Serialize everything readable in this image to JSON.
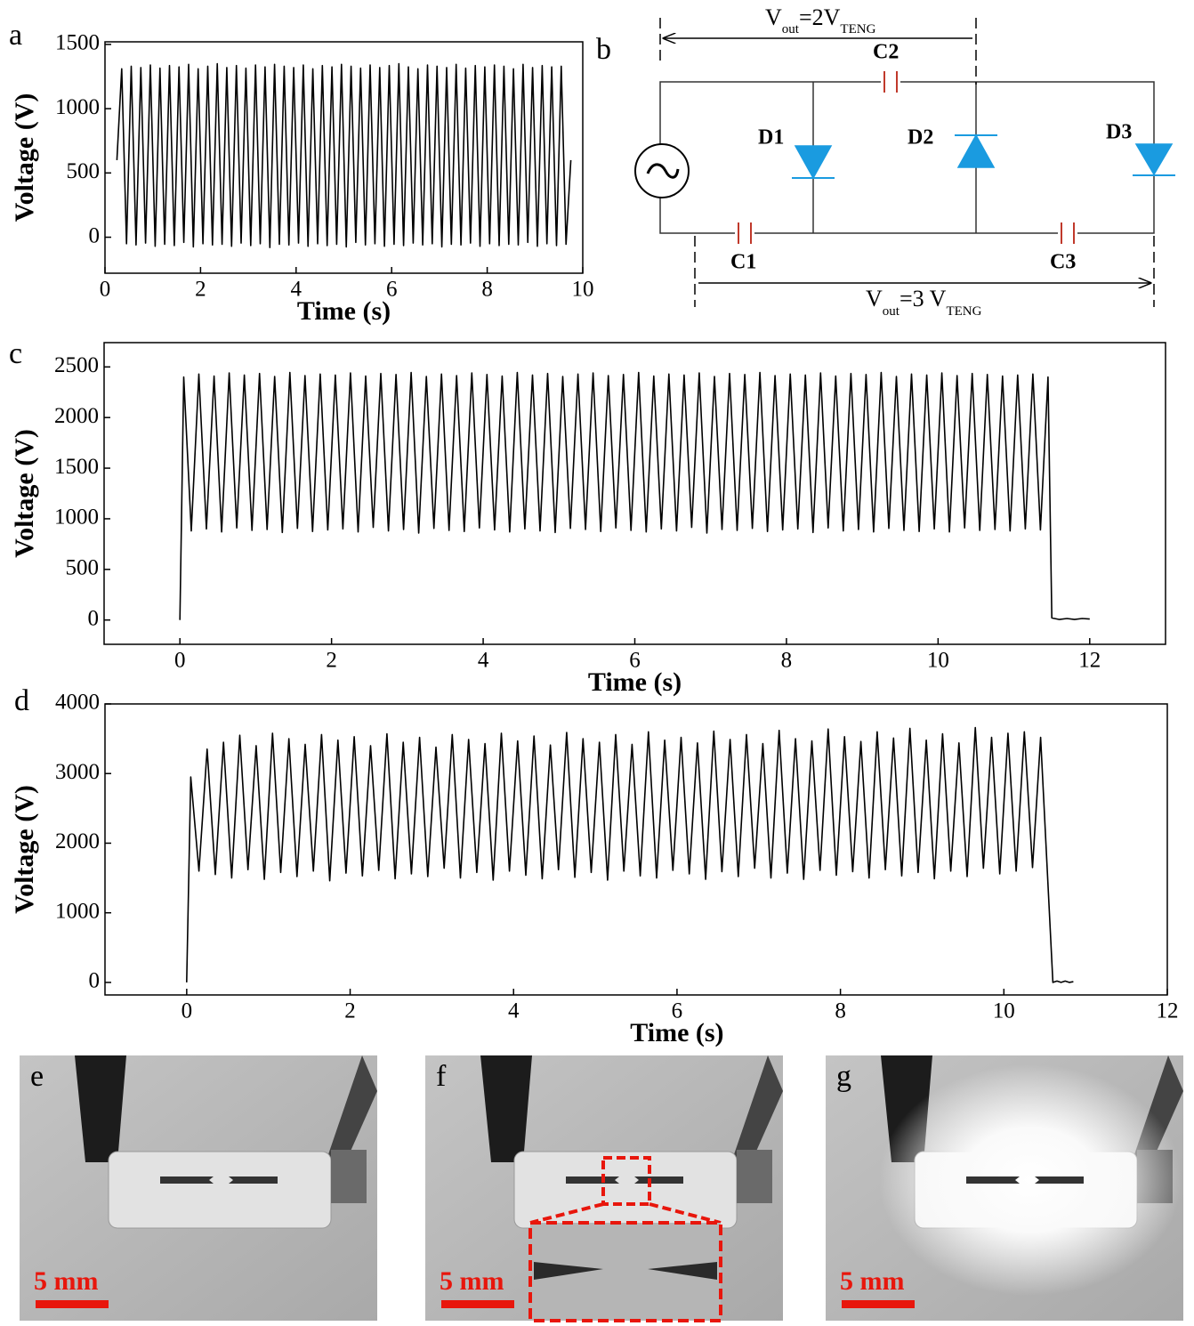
{
  "chart_data": [
    {
      "type": "line",
      "panel": "a",
      "xlabel": "Time (s)",
      "ylabel": "Voltage (V)",
      "color": "#000000",
      "xlim": [
        0,
        10
      ],
      "xticks": [
        0,
        2,
        4,
        6,
        8,
        10
      ],
      "ylim": [
        -280,
        1520
      ],
      "yticks": [
        0,
        500,
        1000,
        1500
      ],
      "x": [
        0.25,
        0.35,
        0.45,
        0.55,
        0.65,
        0.75,
        0.85,
        0.95,
        1.05,
        1.15,
        1.25,
        1.35,
        1.45,
        1.55,
        1.65,
        1.75,
        1.85,
        1.95,
        2.05,
        2.15,
        2.25,
        2.35,
        2.45,
        2.55,
        2.65,
        2.75,
        2.85,
        2.95,
        3.05,
        3.15,
        3.25,
        3.35,
        3.45,
        3.55,
        3.65,
        3.75,
        3.85,
        3.95,
        4.05,
        4.15,
        4.25,
        4.35,
        4.45,
        4.55,
        4.65,
        4.75,
        4.85,
        4.95,
        5.05,
        5.15,
        5.25,
        5.35,
        5.45,
        5.55,
        5.65,
        5.75,
        5.85,
        5.95,
        6.05,
        6.15,
        6.25,
        6.35,
        6.45,
        6.55,
        6.65,
        6.75,
        6.85,
        6.95,
        7.05,
        7.15,
        7.25,
        7.35,
        7.45,
        7.55,
        7.65,
        7.75,
        7.85,
        7.95,
        8.05,
        8.15,
        8.25,
        8.35,
        8.45,
        8.55,
        8.65,
        8.75,
        8.85,
        8.95,
        9.05,
        9.15,
        9.25,
        9.35,
        9.45,
        9.55,
        9.65,
        9.75
      ],
      "values": [
        600,
        1310,
        -50,
        1330,
        -60,
        1320,
        -45,
        1340,
        -70,
        1315,
        -55,
        1335,
        -65,
        1325,
        -40,
        1345,
        -75,
        1310,
        -50,
        1330,
        -60,
        1350,
        -55,
        1320,
        -70,
        1335,
        -45,
        1315,
        -65,
        1340,
        -50,
        1325,
        -80,
        1345,
        -55,
        1330,
        -60,
        1320,
        -45,
        1340,
        -70,
        1310,
        -50,
        1335,
        -65,
        1325,
        -55,
        1345,
        -75,
        1330,
        -40,
        1315,
        -60,
        1340,
        -50,
        1320,
        -70,
        1335,
        -55,
        1350,
        -65,
        1325,
        -45,
        1310,
        -60,
        1340,
        -50,
        1330,
        -75,
        1320,
        -55,
        1345,
        -60,
        1315,
        -45,
        1335,
        -70,
        1325,
        -50,
        1340,
        -65,
        1330,
        -55,
        1310,
        -60,
        1345,
        -40,
        1320,
        -70,
        1335,
        -50,
        1325,
        -65,
        1330,
        -55,
        600
      ]
    },
    {
      "type": "line",
      "panel": "c",
      "xlabel": "Time (s)",
      "ylabel": "Voltage (V)",
      "color": "#000000",
      "xlim": [
        -1,
        13
      ],
      "xticks": [
        0,
        2,
        4,
        6,
        8,
        10,
        12
      ],
      "ylim": [
        -240,
        2740
      ],
      "yticks": [
        0,
        500,
        1000,
        1500,
        2000,
        2500
      ],
      "x": [
        0,
        0.05,
        0.15,
        0.25,
        0.35,
        0.45,
        0.55,
        0.65,
        0.75,
        0.85,
        0.95,
        1.05,
        1.15,
        1.25,
        1.35,
        1.45,
        1.55,
        1.65,
        1.75,
        1.85,
        1.95,
        2.05,
        2.15,
        2.25,
        2.35,
        2.45,
        2.55,
        2.65,
        2.75,
        2.85,
        2.95,
        3.05,
        3.15,
        3.25,
        3.35,
        3.45,
        3.55,
        3.65,
        3.75,
        3.85,
        3.95,
        4.05,
        4.15,
        4.25,
        4.35,
        4.45,
        4.55,
        4.65,
        4.75,
        4.85,
        4.95,
        5.05,
        5.15,
        5.25,
        5.35,
        5.45,
        5.55,
        5.65,
        5.75,
        5.85,
        5.95,
        6.05,
        6.15,
        6.25,
        6.35,
        6.45,
        6.55,
        6.65,
        6.75,
        6.85,
        6.95,
        7.05,
        7.15,
        7.25,
        7.35,
        7.45,
        7.55,
        7.65,
        7.75,
        7.85,
        7.95,
        8.05,
        8.15,
        8.25,
        8.35,
        8.45,
        8.55,
        8.65,
        8.75,
        8.85,
        8.95,
        9.05,
        9.15,
        9.25,
        9.35,
        9.45,
        9.55,
        9.65,
        9.75,
        9.85,
        9.95,
        10.05,
        10.15,
        10.25,
        10.35,
        10.45,
        10.55,
        10.65,
        10.75,
        10.85,
        10.95,
        11.05,
        11.15,
        11.25,
        11.35,
        11.45,
        11.5,
        11.6,
        11.7,
        11.8,
        11.9,
        12
      ],
      "values": [
        0,
        2400,
        880,
        2430,
        900,
        2410,
        870,
        2440,
        910,
        2420,
        885,
        2435,
        895,
        2405,
        865,
        2445,
        905,
        2415,
        875,
        2430,
        890,
        2420,
        900,
        2440,
        870,
        2410,
        915,
        2435,
        880,
        2425,
        895,
        2445,
        860,
        2405,
        905,
        2430,
        885,
        2415,
        875,
        2440,
        910,
        2425,
        890,
        2410,
        870,
        2445,
        900,
        2420,
        880,
        2435,
        865,
        2405,
        905,
        2430,
        895,
        2440,
        875,
        2415,
        910,
        2425,
        885,
        2445,
        870,
        2410,
        900,
        2430,
        880,
        2420,
        915,
        2440,
        860,
        2405,
        895,
        2435,
        885,
        2425,
        905,
        2445,
        875,
        2415,
        890,
        2430,
        900,
        2420,
        865,
        2440,
        910,
        2410,
        880,
        2435,
        895,
        2425,
        870,
        2445,
        905,
        2405,
        885,
        2430,
        875,
        2420,
        900,
        2440,
        870,
        2415,
        910,
        2435,
        885,
        2425,
        895,
        2410,
        880,
        2420,
        900,
        2430,
        890,
        2400,
        20,
        5,
        15,
        5,
        15,
        10
      ]
    },
    {
      "type": "line",
      "panel": "d",
      "xlabel": "Time (s)",
      "ylabel": "Voltage (V)",
      "color": "#000000",
      "xlim": [
        -1,
        12
      ],
      "xticks": [
        0,
        2,
        4,
        6,
        8,
        10,
        12
      ],
      "ylim": [
        -180,
        4000
      ],
      "yticks": [
        0,
        1000,
        2000,
        3000,
        4000
      ],
      "x": [
        0,
        0.05,
        0.15,
        0.25,
        0.35,
        0.45,
        0.55,
        0.65,
        0.75,
        0.85,
        0.95,
        1.05,
        1.15,
        1.25,
        1.35,
        1.45,
        1.55,
        1.65,
        1.75,
        1.85,
        1.95,
        2.05,
        2.15,
        2.25,
        2.35,
        2.45,
        2.55,
        2.65,
        2.75,
        2.85,
        2.95,
        3.05,
        3.15,
        3.25,
        3.35,
        3.45,
        3.55,
        3.65,
        3.75,
        3.85,
        3.95,
        4.05,
        4.15,
        4.25,
        4.35,
        4.45,
        4.55,
        4.65,
        4.75,
        4.85,
        4.95,
        5.05,
        5.15,
        5.25,
        5.35,
        5.45,
        5.55,
        5.65,
        5.75,
        5.85,
        5.95,
        6.05,
        6.15,
        6.25,
        6.35,
        6.45,
        6.55,
        6.65,
        6.75,
        6.85,
        6.95,
        7.05,
        7.15,
        7.25,
        7.35,
        7.45,
        7.55,
        7.65,
        7.75,
        7.85,
        7.95,
        8.05,
        8.15,
        8.25,
        8.35,
        8.45,
        8.55,
        8.65,
        8.75,
        8.85,
        8.95,
        9.05,
        9.15,
        9.25,
        9.35,
        9.45,
        9.55,
        9.65,
        9.75,
        9.85,
        9.95,
        10.05,
        10.15,
        10.25,
        10.35,
        10.45,
        10.6,
        10.65,
        10.7,
        10.75,
        10.8,
        10.85
      ],
      "values": [
        0,
        2950,
        1600,
        3350,
        1550,
        3450,
        1500,
        3550,
        1620,
        3400,
        1480,
        3580,
        1580,
        3500,
        1520,
        3420,
        1600,
        3560,
        1460,
        3480,
        1570,
        3530,
        1530,
        3400,
        1610,
        3570,
        1490,
        3450,
        1560,
        3520,
        1520,
        3380,
        1640,
        3560,
        1500,
        3490,
        1580,
        3430,
        1470,
        3580,
        1600,
        3470,
        1540,
        3540,
        1490,
        3410,
        1620,
        3590,
        1510,
        3500,
        1580,
        3450,
        1470,
        3560,
        1600,
        3420,
        1530,
        3600,
        1500,
        3480,
        1610,
        3520,
        1560,
        3440,
        1480,
        3610,
        1590,
        3490,
        1520,
        3560,
        1640,
        3430,
        1500,
        3620,
        1570,
        3500,
        1480,
        3470,
        1610,
        3640,
        1540,
        3530,
        1590,
        3460,
        1500,
        3600,
        1620,
        3510,
        1530,
        3650,
        1580,
        3480,
        1490,
        3570,
        1600,
        3440,
        1520,
        3660,
        1640,
        3520,
        1560,
        3580,
        1600,
        3600,
        1650,
        3520,
        0,
        20,
        0,
        20,
        0,
        10
      ]
    }
  ],
  "circuit": {
    "panel": "b",
    "top_label": {
      "v": "V",
      "sub": "out",
      "eq": "=2V",
      "sub2": "TENG"
    },
    "bottom_label": {
      "v": "V",
      "sub": "out",
      "eq": "=3 V",
      "sub2": "TENG"
    },
    "capacitors": [
      "C1",
      "C2",
      "C3"
    ],
    "diodes": [
      "D1",
      "D2",
      "D3"
    ]
  },
  "photos": [
    {
      "panel": "e",
      "scale": "5 mm"
    },
    {
      "panel": "f",
      "scale": "5 mm"
    },
    {
      "panel": "g",
      "scale": "5 mm"
    }
  ]
}
